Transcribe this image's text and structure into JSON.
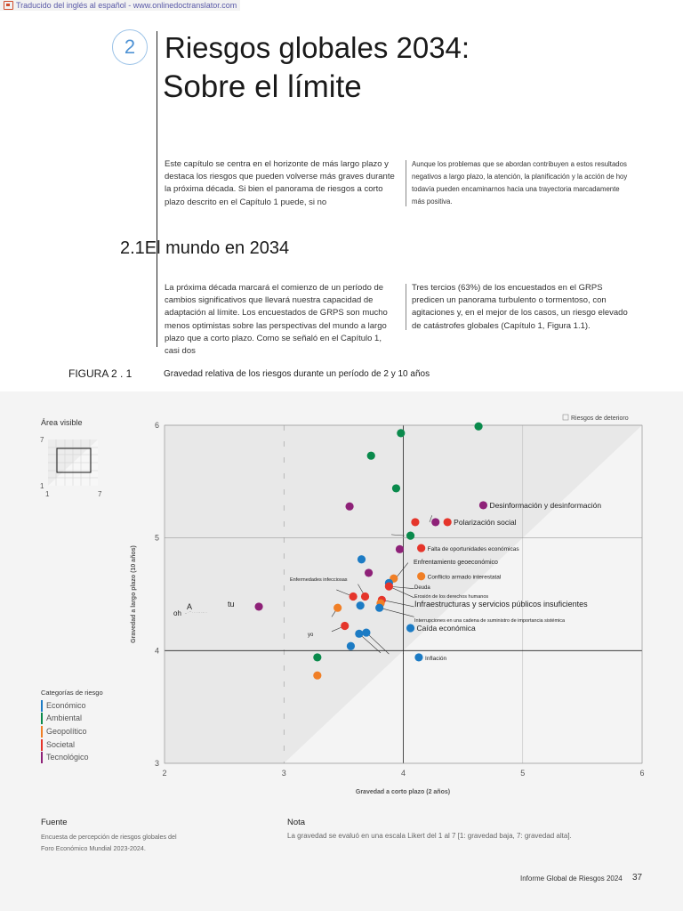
{
  "banner": {
    "text": "Traducido del inglés al español - www.onlinedoctranslator.com"
  },
  "chapter": {
    "number": "2",
    "title_line1": "Riesgos globales 2034:",
    "title_line2": "Sobre el límite"
  },
  "intro": {
    "left": "Este capítulo se centra en el horizonte de más largo plazo y destaca los riesgos que pueden volverse más graves durante la próxima década. Si bien el panorama de riesgos a corto plazo descrito en el Capítulo 1 puede, si no",
    "right": "Aunque los problemas que se abordan contribuyen a estos resultados negativos a largo plazo, la atención, la planificación y la acción de hoy todavía pueden encaminarnos hacia una trayectoria marcadamente más positiva."
  },
  "section": {
    "heading": "2.1El mundo en 2034",
    "left": "La próxima década marcará el comienzo de un período de cambios significativos que llevará nuestra capacidad de adaptación al límite. Los encuestados de GRPS son mucho menos optimistas sobre las perspectivas del mundo a largo plazo que a corto plazo. Como se señaló en el Capítulo 1, casi dos",
    "right": "Tres tercios (63%) de los encuestados en el GRPS predicen un panorama turbulento o tormentoso, con agitaciones y, en el mejor de los casos, un riesgo elevado de catástrofes globales (Capítulo 1, Figura 1.1)."
  },
  "figure": {
    "label": "FIGURA 2 . 1",
    "title": "Gravedad relativa de los riesgos durante un período de 2 y 10 años"
  },
  "visible_area": {
    "label": "Área visible",
    "ymax": "7",
    "ymin": "1",
    "xmin": "1",
    "xmax": "7"
  },
  "legend": {
    "title": "Categorías de riesgo",
    "items": [
      {
        "label": "Económico",
        "color": "#1c7bc4"
      },
      {
        "label": "Ambiental",
        "color": "#0a8a4c"
      },
      {
        "label": "Geopolítico",
        "color": "#f07f26"
      },
      {
        "label": "Societal",
        "color": "#e5352b"
      },
      {
        "label": "Tecnológico",
        "color": "#8e2178"
      }
    ]
  },
  "colors": {
    "Económico": "#1c7bc4",
    "Ambiental": "#0a8a4c",
    "Geopolítico": "#f07f26",
    "Societal": "#e5352b",
    "Tecnológico": "#8e2178"
  },
  "chart_data": {
    "type": "scatter",
    "title": "Gravedad relativa de los riesgos durante un período de 2 y 10 años",
    "xlabel": "Gravedad a corto plazo (2 años)",
    "ylabel": "Gravedad a largo plazo (10 años)",
    "xlim": [
      2,
      6
    ],
    "ylim": [
      3,
      6
    ],
    "xticks": [
      "2",
      "3",
      "4",
      "5",
      "6"
    ],
    "yticks": [
      "3",
      "4",
      "5",
      "6"
    ],
    "grid": true,
    "legend_note": "Riesgos de deterioro",
    "points": [
      {
        "x": 4.63,
        "y": 5.99,
        "category": "Ambiental",
        "label": ""
      },
      {
        "x": 3.98,
        "y": 5.93,
        "category": "Ambiental",
        "label": ""
      },
      {
        "x": 3.73,
        "y": 5.73,
        "category": "Ambiental",
        "label": ""
      },
      {
        "x": 3.94,
        "y": 5.44,
        "category": "Ambiental",
        "label": ""
      },
      {
        "x": 4.67,
        "y": 5.29,
        "category": "Tecnológico",
        "label": "Desinformación y desinformación"
      },
      {
        "x": 3.55,
        "y": 5.28,
        "category": "Tecnológico",
        "label": ""
      },
      {
        "x": 4.1,
        "y": 5.14,
        "category": "Societal",
        "label": ""
      },
      {
        "x": 4.27,
        "y": 5.14,
        "category": "Tecnológico",
        "label": ""
      },
      {
        "x": 4.37,
        "y": 5.14,
        "category": "Societal",
        "label": "Polarización social"
      },
      {
        "x": 4.06,
        "y": 5.02,
        "category": "Ambiental",
        "label": ""
      },
      {
        "x": 4.15,
        "y": 4.91,
        "category": "Societal",
        "label": "Falta de oportunidades económicas"
      },
      {
        "x": 3.97,
        "y": 4.9,
        "category": "Tecnológico",
        "label": ""
      },
      {
        "x": 3.65,
        "y": 4.81,
        "category": "Económico",
        "label": ""
      },
      {
        "x": 3.71,
        "y": 4.69,
        "category": "Tecnológico",
        "label": ""
      },
      {
        "x": 4.15,
        "y": 4.66,
        "category": "Geopolítico",
        "label": "Conflicto armado interestatal"
      },
      {
        "x": 3.92,
        "y": 4.64,
        "category": "Geopolítico",
        "label": ""
      },
      {
        "x": 3.88,
        "y": 4.6,
        "category": "Económico",
        "label": ""
      },
      {
        "x": 3.88,
        "y": 4.57,
        "category": "Societal",
        "label": ""
      },
      {
        "x": 3.58,
        "y": 4.48,
        "category": "Societal",
        "label": ""
      },
      {
        "x": 3.68,
        "y": 4.48,
        "category": "Societal",
        "label": ""
      },
      {
        "x": 3.82,
        "y": 4.45,
        "category": "Societal",
        "label": ""
      },
      {
        "x": 3.81,
        "y": 4.42,
        "category": "Geopolítico",
        "label": ""
      },
      {
        "x": 3.64,
        "y": 4.4,
        "category": "Económico",
        "label": ""
      },
      {
        "x": 3.8,
        "y": 4.38,
        "category": "Económico",
        "label": ""
      },
      {
        "x": 3.45,
        "y": 4.38,
        "category": "Geopolítico",
        "label": ""
      },
      {
        "x": 2.79,
        "y": 4.39,
        "category": "Tecnológico",
        "label": ""
      },
      {
        "x": 3.51,
        "y": 4.22,
        "category": "Societal",
        "label": ""
      },
      {
        "x": 4.06,
        "y": 4.2,
        "category": "Económico",
        "label": "Caída económica"
      },
      {
        "x": 3.69,
        "y": 4.16,
        "category": "Económico",
        "label": ""
      },
      {
        "x": 3.63,
        "y": 4.15,
        "category": "Económico",
        "label": ""
      },
      {
        "x": 3.56,
        "y": 4.04,
        "category": "Económico",
        "label": ""
      },
      {
        "x": 4.13,
        "y": 3.94,
        "category": "Económico",
        "label": "Inflación"
      },
      {
        "x": 3.28,
        "y": 3.94,
        "category": "Ambiental",
        "label": ""
      },
      {
        "x": 3.28,
        "y": 3.78,
        "category": "Geopolítico",
        "label": ""
      }
    ],
    "annotations": [
      "Enfrentamiento geoeconómico",
      "Enfermedades infecciosas",
      "Deuda",
      "Erosión de los derechos humanos",
      "Infraestructuras y servicios públicos insuficientes",
      "Interrupciones en una cadena de suministro de importancia sistémica",
      "yo",
      "A",
      "tu",
      "oh"
    ]
  },
  "source": {
    "heading": "Fuente",
    "text": "Encuesta de percepción de riesgos globales del Foro Económico Mundial 2023-2024."
  },
  "note": {
    "heading": "Nota",
    "text": "La gravedad se evaluó en una escala Likert del 1 al 7 [1: gravedad baja, 7: gravedad alta]."
  },
  "footer": {
    "report": "Informe Global de Riesgos 2024",
    "page": "37"
  }
}
